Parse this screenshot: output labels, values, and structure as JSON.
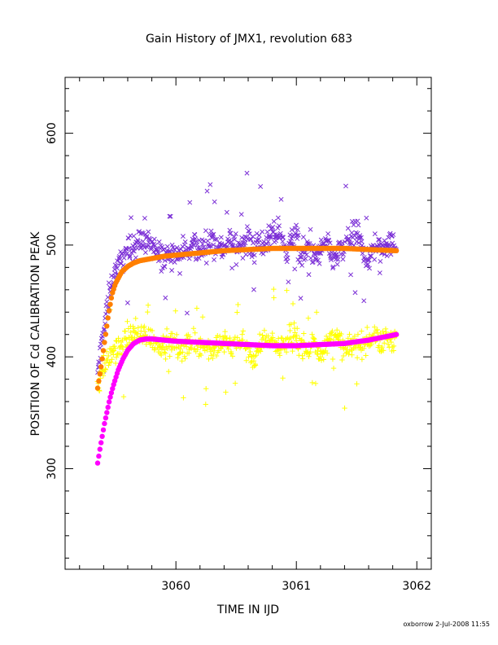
{
  "chart_data": {
    "type": "scatter",
    "title": "Gain History of JMX1, revolution 683",
    "xlabel": "TIME IN IJD",
    "ylabel": "POSITION OF Cd CALIBRATION PEAK",
    "footer": "oxborrow  2-Jul-2008 11:55",
    "xlim": [
      3059.08,
      3062.12
    ],
    "ylim": [
      210,
      650
    ],
    "x_ticks": [
      3060,
      3061,
      3062
    ],
    "x_tick_labels": [
      "3060",
      "3061",
      "3062"
    ],
    "y_ticks": [
      300,
      400,
      500,
      600
    ],
    "y_tick_labels": [
      "300",
      "400",
      "500",
      "600"
    ],
    "grid": false,
    "legend": "none",
    "series": [
      {
        "marker": "x",
        "color": "#7b2fd6",
        "x": [
          3059.35,
          3059.37,
          3059.39,
          3059.41,
          3059.43,
          3059.45,
          3059.47,
          3059.5,
          3059.55,
          3059.6,
          3059.65,
          3059.7,
          3059.75,
          3059.8,
          3059.85,
          3059.9,
          3059.95,
          3060.0,
          3060.05,
          3060.1,
          3060.15,
          3060.2,
          3060.25,
          3060.3,
          3060.35,
          3060.4,
          3060.45,
          3060.5,
          3060.55,
          3060.6,
          3060.65,
          3060.7,
          3060.75,
          3060.8,
          3060.85,
          3060.9,
          3060.95,
          3061.0,
          3061.05,
          3061.1,
          3061.15,
          3061.2,
          3061.25,
          3061.3,
          3061.35,
          3061.4,
          3061.45,
          3061.5,
          3061.55,
          3061.6,
          3061.65,
          3061.7,
          3061.75,
          3061.8,
          3061.83
        ],
        "y": [
          385,
          400,
          415,
          430,
          445,
          458,
          468,
          478,
          487,
          496,
          500,
          503,
          505,
          498,
          492,
          488,
          495,
          490,
          497,
          493,
          502,
          495,
          499,
          505,
          500,
          496,
          504,
          498,
          501,
          506,
          497,
          503,
          500,
          508,
          512,
          495,
          502,
          506,
          490,
          500,
          486,
          495,
          500,
          488,
          492,
          498,
          505,
          510,
          495,
          488,
          500,
          496,
          504,
          498,
          500
        ],
        "scatter_range": [
          -18,
          18
        ]
      },
      {
        "marker": "+",
        "color": "#ffff00",
        "x": [
          3059.35,
          3059.37,
          3059.39,
          3059.41,
          3059.43,
          3059.45,
          3059.47,
          3059.5,
          3059.55,
          3059.6,
          3059.65,
          3059.7,
          3059.75,
          3059.8,
          3059.85,
          3059.9,
          3059.95,
          3060.0,
          3060.05,
          3060.1,
          3060.15,
          3060.2,
          3060.25,
          3060.3,
          3060.35,
          3060.4,
          3060.45,
          3060.5,
          3060.55,
          3060.6,
          3060.65,
          3060.7,
          3060.75,
          3060.8,
          3060.85,
          3060.9,
          3060.95,
          3061.0,
          3061.05,
          3061.1,
          3061.15,
          3061.2,
          3061.25,
          3061.3,
          3061.35,
          3061.4,
          3061.45,
          3061.5,
          3061.55,
          3061.6,
          3061.65,
          3061.7,
          3061.75,
          3061.8,
          3061.83
        ],
        "y": [
          375,
          383,
          388,
          392,
          396,
          400,
          404,
          408,
          412,
          418,
          422,
          420,
          418,
          416,
          412,
          410,
          414,
          410,
          406,
          415,
          412,
          408,
          412,
          405,
          410,
          412,
          408,
          412,
          416,
          406,
          398,
          410,
          418,
          415,
          408,
          412,
          420,
          416,
          410,
          405,
          414,
          402,
          410,
          420,
          416,
          404,
          408,
          412,
          410,
          416,
          420,
          410,
          418,
          414,
          420
        ],
        "scatter_range": [
          -16,
          16
        ]
      },
      {
        "marker": "line",
        "color": "#ff7f00",
        "x": [
          3059.35,
          3059.38,
          3059.41,
          3059.44,
          3059.47,
          3059.5,
          3059.55,
          3059.6,
          3059.65,
          3059.7,
          3059.8,
          3059.9,
          3060.0,
          3060.2,
          3060.4,
          3060.6,
          3060.8,
          3061.0,
          3061.2,
          3061.4,
          3061.6,
          3061.83
        ],
        "y": [
          372,
          392,
          415,
          438,
          456,
          466,
          476,
          481,
          484,
          486,
          488,
          490,
          491,
          493,
          495,
          496,
          497,
          497,
          497,
          497,
          496,
          495
        ]
      },
      {
        "marker": "line",
        "color": "#ff00ff",
        "x": [
          3059.35,
          3059.37,
          3059.39,
          3059.41,
          3059.43,
          3059.45,
          3059.48,
          3059.52,
          3059.56,
          3059.6,
          3059.65,
          3059.7,
          3059.75,
          3059.8,
          3059.9,
          3060.0,
          3060.2,
          3060.4,
          3060.6,
          3060.8,
          3061.0,
          3061.2,
          3061.4,
          3061.6,
          3061.83
        ],
        "y": [
          305,
          318,
          330,
          342,
          352,
          362,
          374,
          388,
          398,
          406,
          412,
          415,
          416,
          416,
          415,
          414,
          413,
          412,
          411,
          410,
          410,
          411,
          412,
          415,
          420
        ]
      }
    ]
  }
}
